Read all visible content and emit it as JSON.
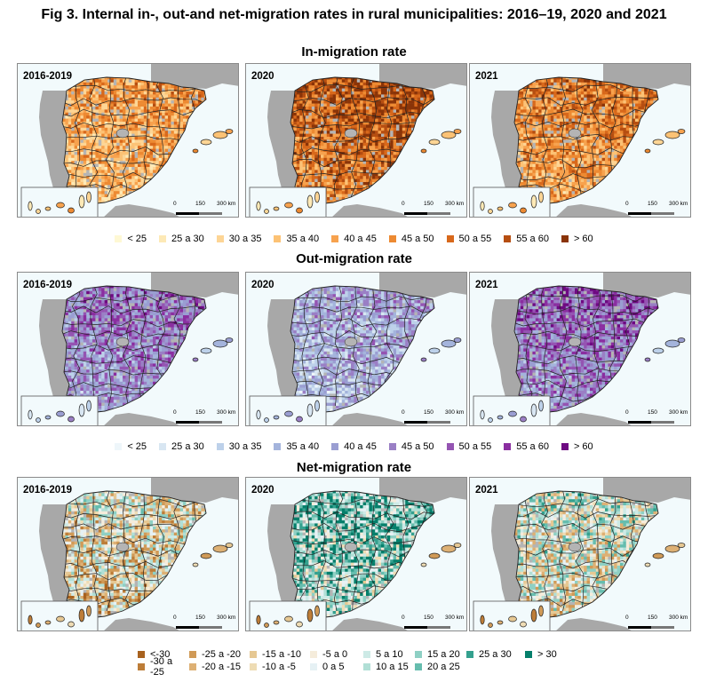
{
  "figure_title": "Fig 3. Internal in-, out-and net-migration rates in rural municipalities: 2016–19, 2020 and 2021",
  "sections": [
    {
      "id": "in",
      "title": "In-migration rate",
      "panels": [
        "2016-2019",
        "2020",
        "2021"
      ],
      "intensity": [
        0.45,
        0.7,
        0.55
      ],
      "legend": [
        {
          "label": "< 25",
          "color": "#fef8d4"
        },
        {
          "label": "25 a 30",
          "color": "#fde9b6"
        },
        {
          "label": "30 a 35",
          "color": "#fdd595"
        },
        {
          "label": "35 a 40",
          "color": "#fcc275"
        },
        {
          "label": "40 a 45",
          "color": "#f7a24e"
        },
        {
          "label": "45 a 50",
          "color": "#ed8a32"
        },
        {
          "label": "50 a 55",
          "color": "#d8681b"
        },
        {
          "label": "55 a 60",
          "color": "#b64e11"
        },
        {
          "label": "> 60",
          "color": "#8a3408"
        }
      ]
    },
    {
      "id": "out",
      "title": "Out-migration rate",
      "panels": [
        "2016-2019",
        "2020",
        "2021"
      ],
      "intensity": [
        0.55,
        0.4,
        0.6
      ],
      "legend": [
        {
          "label": "< 25",
          "color": "#eef6fa"
        },
        {
          "label": "25 a 30",
          "color": "#d8e6f2"
        },
        {
          "label": "30 a 35",
          "color": "#bdd1ea"
        },
        {
          "label": "35 a 40",
          "color": "#a4b4dc"
        },
        {
          "label": "40 a 45",
          "color": "#9a9ed2"
        },
        {
          "label": "45 a 50",
          "color": "#9a7fc5"
        },
        {
          "label": "50 a 55",
          "color": "#9454b2"
        },
        {
          "label": "55 a 60",
          "color": "#8a2ea0"
        },
        {
          "label": "> 60",
          "color": "#6e0a82"
        }
      ]
    },
    {
      "id": "net",
      "title": "Net-migration rate",
      "panels": [
        "2016-2019",
        "2020",
        "2021"
      ],
      "intensity": [
        0.3,
        0.75,
        0.45
      ],
      "legend": [
        {
          "label": "<-30",
          "color": "#a8621f"
        },
        {
          "label": "-30 a -25",
          "color": "#bd7d38"
        },
        {
          "label": "-25 a -20",
          "color": "#d09a57"
        },
        {
          "label": "-20 a -15",
          "color": "#ddb074"
        },
        {
          "label": "-15 a -10",
          "color": "#e6c893"
        },
        {
          "label": "-10 a -5",
          "color": "#eedcb4"
        },
        {
          "label": "-5 a 0",
          "color": "#f5ecdb"
        },
        {
          "label": "0 a 5",
          "color": "#e6f1f4"
        },
        {
          "label": "5 a 10",
          "color": "#cdeae6"
        },
        {
          "label": "10 a 15",
          "color": "#b1dfd6"
        },
        {
          "label": "15 a 20",
          "color": "#8ed0c4"
        },
        {
          "label": "20 a 25",
          "color": "#66bdae"
        },
        {
          "label": "25 a 30",
          "color": "#34a08e"
        },
        {
          "label": "> 30",
          "color": "#057f6b"
        }
      ]
    }
  ],
  "scale_bar": {
    "ticks": [
      "0",
      "150",
      "300 km"
    ]
  },
  "colors": {
    "land_other": "#a8a8a8",
    "sea": "#f2fafc",
    "urban_gray": "#b4b4b4",
    "border": "#222222"
  }
}
